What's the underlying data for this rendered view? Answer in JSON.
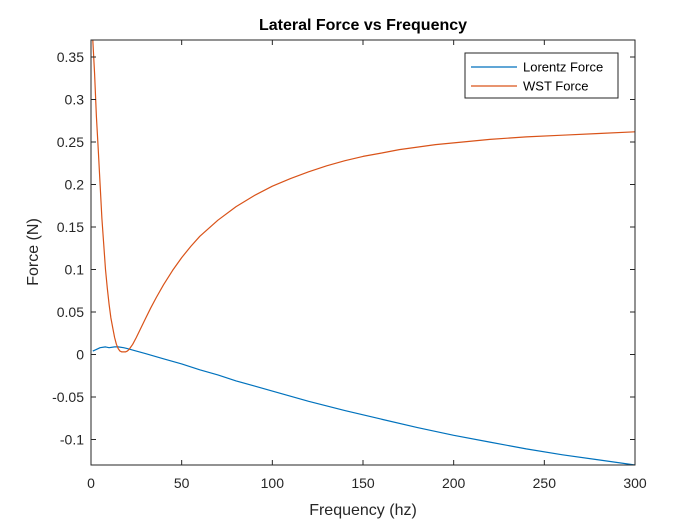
{
  "chart_data": {
    "type": "line",
    "title": "Lateral Force vs Frequency",
    "xlabel": "Frequency (hz)",
    "ylabel": "Force (N)",
    "xlim": [
      0,
      300
    ],
    "ylim": [
      -0.13,
      0.37
    ],
    "xticks": [
      0,
      50,
      100,
      150,
      200,
      250,
      300
    ],
    "xtick_labels": [
      "0",
      "50",
      "100",
      "150",
      "200",
      "250",
      "300"
    ],
    "yticks": [
      -0.1,
      -0.05,
      0,
      0.05,
      0.1,
      0.15,
      0.2,
      0.25,
      0.3,
      0.35
    ],
    "ytick_labels": [
      "-0.1",
      "-0.05",
      "0",
      "0.05",
      "0.1",
      "0.15",
      "0.2",
      "0.25",
      "0.3",
      "0.35"
    ],
    "grid": false,
    "legend_position": "top-right",
    "series": [
      {
        "name": "Lorentz Force",
        "color": "#0072BD",
        "x": [
          1,
          3,
          5,
          8,
          10,
          13,
          15,
          18,
          20,
          25,
          30,
          40,
          50,
          60,
          70,
          80,
          90,
          100,
          120,
          140,
          160,
          180,
          200,
          220,
          240,
          260,
          280,
          300
        ],
        "y": [
          0.004,
          0.006,
          0.008,
          0.009,
          0.008,
          0.009,
          0.009,
          0.008,
          0.007,
          0.004,
          0.001,
          -0.005,
          -0.011,
          -0.018,
          -0.024,
          -0.031,
          -0.037,
          -0.043,
          -0.055,
          -0.066,
          -0.076,
          -0.086,
          -0.095,
          -0.103,
          -0.111,
          -0.118,
          -0.124,
          -0.13
        ]
      },
      {
        "name": "WST Force",
        "color": "#D95319",
        "x": [
          1,
          2,
          3,
          4,
          5,
          6,
          7,
          8,
          9,
          10,
          11,
          12,
          13,
          14,
          15,
          16,
          17,
          18,
          19,
          20,
          21,
          22,
          23,
          25,
          27,
          30,
          33,
          36,
          40,
          45,
          50,
          55,
          60,
          70,
          80,
          90,
          100,
          110,
          120,
          130,
          140,
          150,
          160,
          170,
          180,
          190,
          200,
          220,
          240,
          260,
          280,
          300
        ],
        "y": [
          0.37,
          0.33,
          0.28,
          0.24,
          0.2,
          0.16,
          0.13,
          0.1,
          0.078,
          0.059,
          0.043,
          0.031,
          0.02,
          0.012,
          0.007,
          0.004,
          0.003,
          0.003,
          0.003,
          0.004,
          0.006,
          0.009,
          0.012,
          0.02,
          0.029,
          0.042,
          0.055,
          0.067,
          0.082,
          0.099,
          0.114,
          0.127,
          0.139,
          0.158,
          0.174,
          0.187,
          0.198,
          0.207,
          0.215,
          0.222,
          0.228,
          0.233,
          0.237,
          0.241,
          0.244,
          0.247,
          0.249,
          0.253,
          0.256,
          0.258,
          0.26,
          0.262
        ]
      }
    ]
  }
}
